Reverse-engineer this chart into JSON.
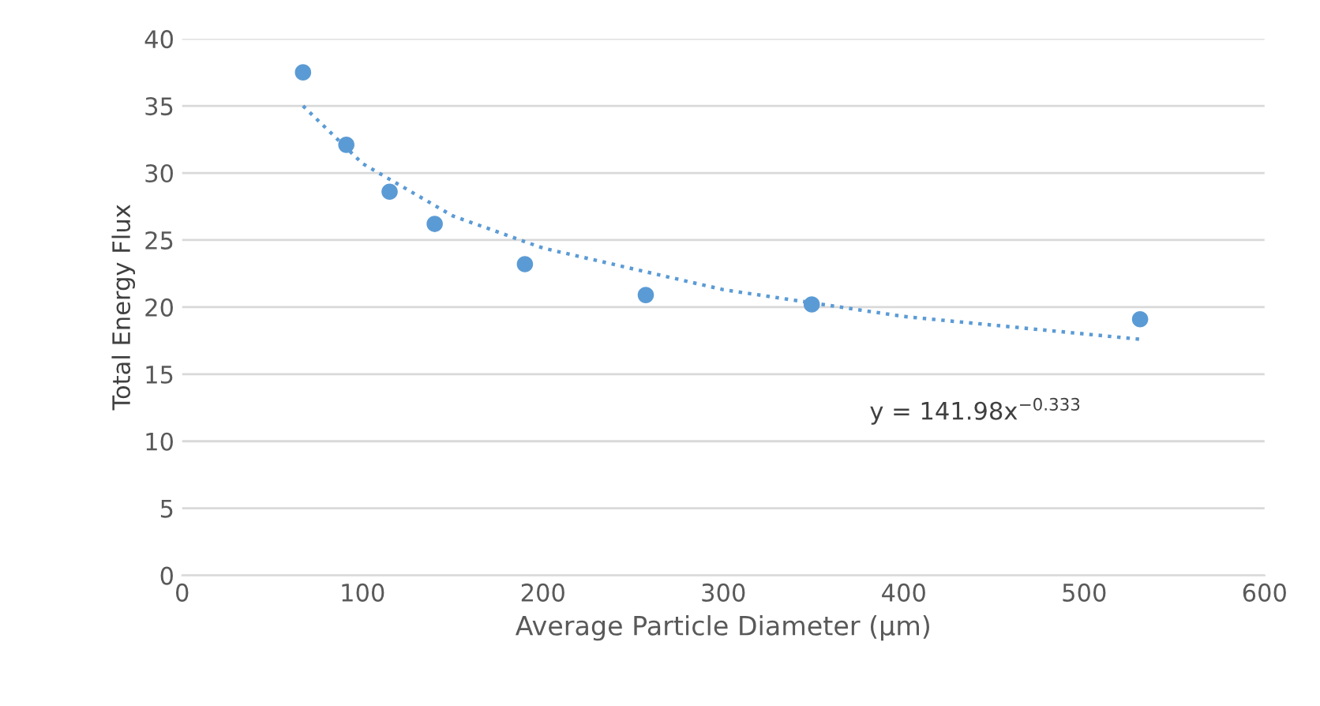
{
  "chart_data": {
    "type": "scatter",
    "xlabel": "Average Particle Diameter (µm)",
    "ylabel": "Total Energy Flux",
    "x": [
      67,
      91,
      115,
      140,
      190,
      257,
      349,
      531
    ],
    "series": [
      {
        "color": "#5b9bd5",
        "values": [
          37.5,
          32.1,
          28.6,
          26.2,
          23.2,
          20.9,
          20.2,
          19.1
        ],
        "marker": "circle"
      },
      {
        "type": "line",
        "color": "#5b9bd5",
        "line_style": "dotted",
        "x": [
          67,
          100,
          150,
          200,
          300,
          400,
          531
        ],
        "values": [
          35.0,
          30.7,
          26.8,
          24.4,
          21.3,
          19.3,
          17.6
        ]
      }
    ],
    "annotations": [
      "y = 141.98x$^{−0.333}$"
    ],
    "xlim": [
      0,
      600
    ],
    "xticks": [
      0,
      100,
      200,
      300,
      400,
      500,
      600
    ],
    "ylim": [
      0,
      40
    ],
    "yticks": [
      0,
      5,
      10,
      15,
      20,
      25,
      30,
      35,
      40
    ],
    "grid": "y",
    "legend": false
  }
}
